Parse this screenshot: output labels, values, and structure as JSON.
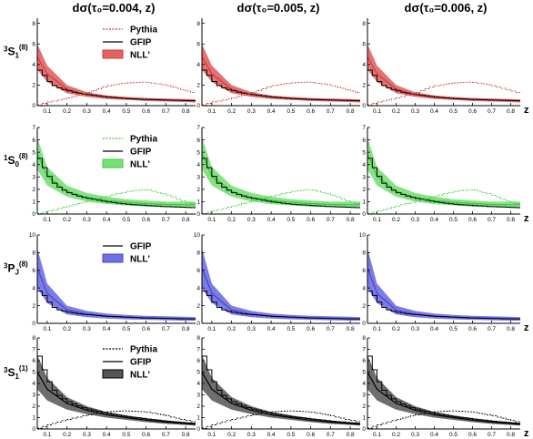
{
  "column_titles": [
    "dσ(τ₀=0.004, z)",
    "dσ(τ₀=0.005, z)",
    "dσ(τ₀=0.006, z)"
  ],
  "row_labels": [
    {
      "pre": "3",
      "main": "S",
      "sub": "1",
      "sup": "(8)"
    },
    {
      "pre": "1",
      "main": "S",
      "sub": "0",
      "sup": "(8)"
    },
    {
      "pre": "3",
      "main": "P",
      "sub": "J",
      "sup": "(8)"
    },
    {
      "pre": "3",
      "main": "S",
      "sub": "1",
      "sup": "(1)"
    }
  ],
  "xlabel": "z",
  "colors": {
    "red": "#d23a3a",
    "red_band": "#e06464",
    "green": "#3cc83c",
    "green_band": "#78e078",
    "blue": "#4646c8",
    "blue_band": "#6e6ee6",
    "black": "#000000",
    "gray_band": "#555555"
  },
  "chart_data": {
    "type": "line",
    "layout": "4x3 grid",
    "x_ticks": [
      0.1,
      0.2,
      0.3,
      0.4,
      0.5,
      0.6,
      0.7,
      0.8
    ],
    "xlim": [
      0.05,
      0.85
    ],
    "rows": [
      {
        "label": "3S1(8)",
        "ylim": [
          0,
          8.5
        ],
        "y_ticks": [
          0,
          2,
          4,
          6,
          8
        ],
        "legend": [
          {
            "name": "Pythia",
            "style": "dashed",
            "color": "#d23a3a"
          },
          {
            "name": "GFIP",
            "style": "solid",
            "color": "#000000"
          },
          {
            "name": "NLL'",
            "style": "band",
            "color": "#d23a3a"
          }
        ],
        "band": {
          "x": [
            0.05,
            0.1,
            0.2,
            0.3,
            0.4,
            0.5,
            0.6,
            0.7,
            0.8,
            0.85
          ],
          "upper": [
            6.0,
            3.9,
            2.0,
            1.3,
            1.0,
            0.85,
            0.75,
            0.7,
            0.65,
            0.6
          ],
          "lower": [
            3.5,
            2.3,
            1.2,
            0.85,
            0.65,
            0.55,
            0.45,
            0.4,
            0.35,
            0.3
          ]
        },
        "gfip": {
          "x": [
            0.05,
            0.075,
            0.1,
            0.125,
            0.15,
            0.2,
            0.25,
            0.3,
            0.4,
            0.5,
            0.6,
            0.7,
            0.8,
            0.85
          ],
          "y": [
            3.6,
            3.3,
            2.6,
            2.1,
            1.8,
            1.5,
            1.25,
            1.1,
            0.85,
            0.7,
            0.6,
            0.55,
            0.5,
            0.5
          ]
        },
        "pythia": {
          "x": [
            0.05,
            0.1,
            0.2,
            0.3,
            0.4,
            0.5,
            0.6,
            0.7,
            0.8,
            0.85
          ],
          "y": [
            0.0,
            0.3,
            0.7,
            1.2,
            1.9,
            2.2,
            2.3,
            2.0,
            1.5,
            1.2
          ]
        },
        "panels": [
          {
            "tau0": 0.004
          },
          {
            "tau0": 0.005
          },
          {
            "tau0": 0.006
          }
        ]
      },
      {
        "label": "1S0(8)",
        "ylim": [
          0,
          7
        ],
        "y_ticks": [
          0,
          1,
          2,
          3,
          4,
          5,
          6,
          7
        ],
        "legend": [
          {
            "name": "Pythia",
            "style": "dashed",
            "color": "#3cc83c"
          },
          {
            "name": "GFIP",
            "style": "solid",
            "color": "#000000"
          },
          {
            "name": "NLL'",
            "style": "band",
            "color": "#3cc83c"
          }
        ],
        "band": {
          "x": [
            0.05,
            0.1,
            0.2,
            0.3,
            0.4,
            0.5,
            0.6,
            0.7,
            0.8,
            0.85
          ],
          "upper": [
            6.2,
            3.8,
            2.3,
            1.7,
            1.4,
            1.2,
            1.1,
            1.0,
            1.0,
            1.0
          ],
          "lower": [
            3.6,
            2.3,
            1.4,
            1.0,
            0.8,
            0.7,
            0.6,
            0.55,
            0.5,
            0.5
          ]
        },
        "gfip": {
          "x": [
            0.05,
            0.075,
            0.1,
            0.125,
            0.15,
            0.2,
            0.25,
            0.3,
            0.4,
            0.5,
            0.6,
            0.7,
            0.8,
            0.85
          ],
          "y": [
            4.9,
            4.1,
            3.4,
            2.7,
            2.3,
            1.8,
            1.5,
            1.3,
            1.0,
            0.8,
            0.7,
            0.6,
            0.55,
            0.5
          ]
        },
        "pythia": {
          "x": [
            0.05,
            0.1,
            0.2,
            0.3,
            0.4,
            0.5,
            0.6,
            0.7,
            0.8,
            0.85
          ],
          "y": [
            0.0,
            0.2,
            0.6,
            1.0,
            1.4,
            1.8,
            2.0,
            1.6,
            1.0,
            0.8
          ]
        },
        "panels": [
          {
            "tau0": 0.004
          },
          {
            "tau0": 0.005
          },
          {
            "tau0": 0.006
          }
        ]
      },
      {
        "label": "3PJ(8)",
        "ylim": [
          0,
          10
        ],
        "y_ticks": [
          0,
          2,
          4,
          6,
          8,
          10
        ],
        "legend": [
          {
            "name": "GFIP",
            "style": "solid",
            "color": "#000000"
          },
          {
            "name": "NLL'",
            "style": "band",
            "color": "#4646c8"
          }
        ],
        "band": {
          "x": [
            0.05,
            0.1,
            0.2,
            0.3,
            0.4,
            0.5,
            0.6,
            0.7,
            0.8,
            0.85
          ],
          "upper": [
            8.5,
            4.5,
            2.0,
            1.4,
            1.1,
            0.95,
            0.85,
            0.8,
            0.75,
            0.7
          ],
          "lower": [
            4.0,
            2.3,
            1.0,
            0.7,
            0.55,
            0.45,
            0.4,
            0.35,
            0.3,
            0.3
          ]
        },
        "gfip": {
          "x": [
            0.05,
            0.075,
            0.1,
            0.125,
            0.15,
            0.2,
            0.25,
            0.3,
            0.4,
            0.5,
            0.6,
            0.7,
            0.8,
            0.85
          ],
          "y": [
            3.8,
            3.5,
            2.8,
            2.0,
            1.6,
            1.3,
            1.1,
            1.0,
            0.8,
            0.7,
            0.6,
            0.55,
            0.5,
            0.5
          ]
        },
        "pythia": null,
        "panels": [
          {
            "tau0": 0.004
          },
          {
            "tau0": 0.005
          },
          {
            "tau0": 0.006
          }
        ]
      },
      {
        "label": "3S1(1)",
        "ylim": [
          0,
          8
        ],
        "y_ticks": [
          0,
          1,
          2,
          3,
          4,
          5,
          6,
          7,
          8
        ],
        "legend": [
          {
            "name": "Pythia",
            "style": "dashed",
            "color": "#000000"
          },
          {
            "name": "GFIP",
            "style": "solid",
            "color": "#000000"
          },
          {
            "name": "NLL'",
            "style": "band",
            "color": "#555555"
          }
        ],
        "band": {
          "x": [
            0.05,
            0.1,
            0.2,
            0.3,
            0.4,
            0.5,
            0.6,
            0.7,
            0.8,
            0.85
          ],
          "upper": [
            6.5,
            4.5,
            2.8,
            2.0,
            1.5,
            1.2,
            0.95,
            0.75,
            0.6,
            0.5
          ],
          "lower": [
            3.5,
            2.5,
            1.7,
            1.3,
            1.0,
            0.8,
            0.6,
            0.45,
            0.35,
            0.3
          ]
        },
        "gfip": {
          "x": [
            0.05,
            0.075,
            0.1,
            0.125,
            0.15,
            0.2,
            0.25,
            0.3,
            0.4,
            0.5,
            0.6,
            0.7,
            0.8,
            0.85
          ],
          "y": [
            7.0,
            5.8,
            4.6,
            3.7,
            3.1,
            2.5,
            2.1,
            1.8,
            1.4,
            1.1,
            0.9,
            0.7,
            0.55,
            0.5
          ]
        },
        "pythia": {
          "x": [
            0.05,
            0.1,
            0.2,
            0.3,
            0.4,
            0.5,
            0.6,
            0.7,
            0.8,
            0.85
          ],
          "y": [
            0.0,
            0.3,
            0.8,
            1.2,
            1.5,
            1.6,
            1.5,
            1.2,
            0.8,
            0.6
          ]
        },
        "panels": [
          {
            "tau0": 0.004
          },
          {
            "tau0": 0.005
          },
          {
            "tau0": 0.006
          }
        ]
      }
    ]
  }
}
